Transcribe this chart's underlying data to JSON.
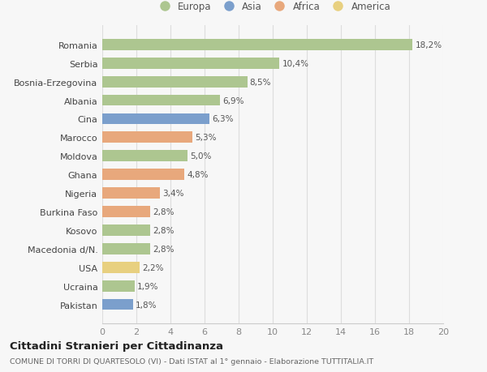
{
  "countries": [
    "Romania",
    "Serbia",
    "Bosnia-Erzegovina",
    "Albania",
    "Cina",
    "Marocco",
    "Moldova",
    "Ghana",
    "Nigeria",
    "Burkina Faso",
    "Kosovo",
    "Macedonia d/N.",
    "USA",
    "Ucraina",
    "Pakistan"
  ],
  "values": [
    18.2,
    10.4,
    8.5,
    6.9,
    6.3,
    5.3,
    5.0,
    4.8,
    3.4,
    2.8,
    2.8,
    2.8,
    2.2,
    1.9,
    1.8
  ],
  "labels": [
    "18,2%",
    "10,4%",
    "8,5%",
    "6,9%",
    "6,3%",
    "5,3%",
    "5,0%",
    "4,8%",
    "3,4%",
    "2,8%",
    "2,8%",
    "2,8%",
    "2,2%",
    "1,9%",
    "1,8%"
  ],
  "continents": [
    "Europa",
    "Europa",
    "Europa",
    "Europa",
    "Asia",
    "Africa",
    "Europa",
    "Africa",
    "Africa",
    "Africa",
    "Europa",
    "Europa",
    "America",
    "Europa",
    "Asia"
  ],
  "colors": {
    "Europa": "#adc690",
    "Asia": "#7b9fcc",
    "Africa": "#e8a87c",
    "America": "#e8d080"
  },
  "legend_order": [
    "Europa",
    "Asia",
    "Africa",
    "America"
  ],
  "title": "Cittadini Stranieri per Cittadinanza",
  "subtitle": "COMUNE DI TORRI DI QUARTESOLO (VI) - Dati ISTAT al 1° gennaio - Elaborazione TUTTITALIA.IT",
  "xlim": [
    0,
    20
  ],
  "xticks": [
    0,
    2,
    4,
    6,
    8,
    10,
    12,
    14,
    16,
    18,
    20
  ],
  "bg_color": "#f7f7f7",
  "plot_bg": "#ffffff"
}
